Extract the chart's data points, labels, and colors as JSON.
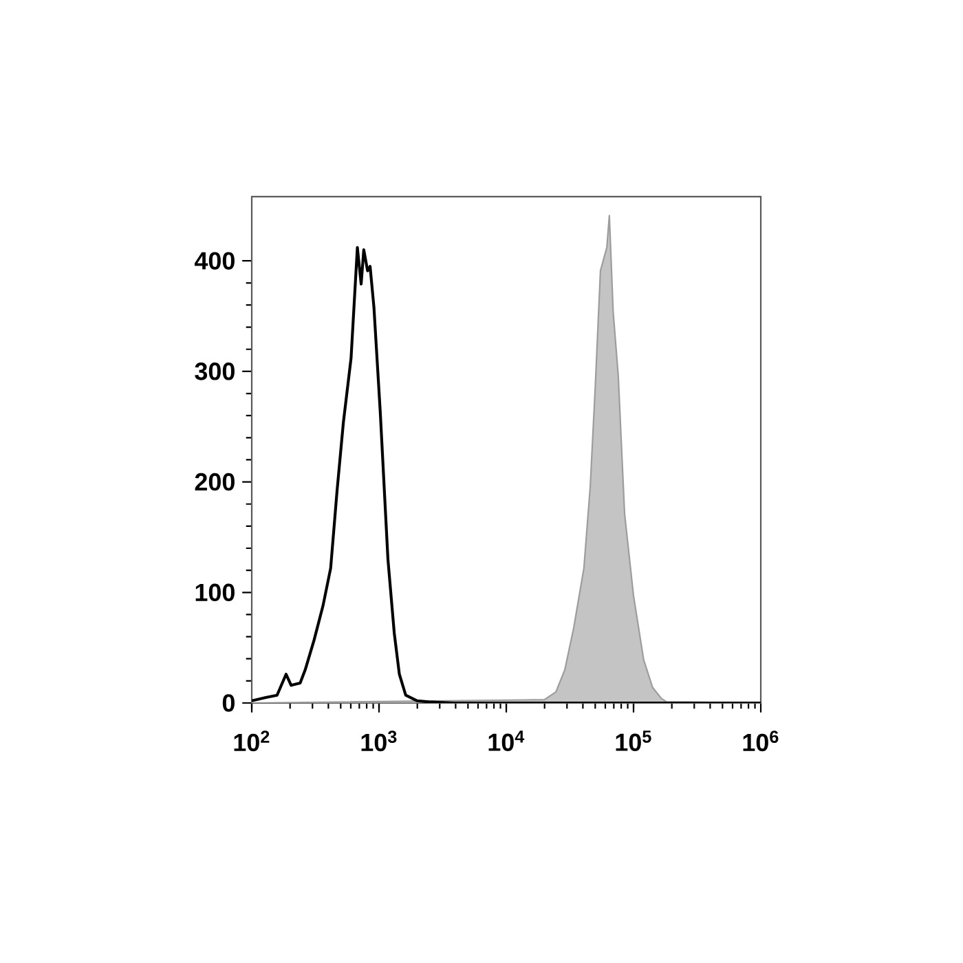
{
  "chart_data": {
    "type": "line",
    "log": "x",
    "xlim": [
      100,
      1000000
    ],
    "ylim": [
      0,
      458
    ],
    "xticks": [
      {
        "value": 100,
        "label": "10$^{2}$"
      },
      {
        "value": 1000,
        "label": "10$^{3}$"
      },
      {
        "value": 10000,
        "label": "10$^{4}$"
      },
      {
        "value": 100000,
        "label": "10$^{5}$"
      },
      {
        "value": 1000000,
        "label": "10$^{6}$"
      }
    ],
    "yticks": [
      0,
      100,
      200,
      300,
      400
    ],
    "series": [
      {
        "type": "area",
        "color": "#c4c4c4",
        "x": [
          100,
          19950,
          24550,
          28840,
          33880,
          40740,
          45710,
          50120,
          54950,
          61660,
          64570,
          69180,
          75860,
          85110,
          100000,
          120200,
          141300,
          166000,
          182000,
          1000000
        ],
        "values": [
          0,
          3,
          10,
          30,
          68,
          122,
          196,
          288,
          391,
          412,
          441,
          354,
          296,
          171,
          97,
          39,
          14,
          4,
          1,
          0
        ]
      },
      {
        "color": "#000000",
        "x": [
          100,
          129,
          158,
          186,
          204,
          240,
          263,
          309,
          363,
          417,
          468,
          525,
          603,
          676,
          724,
          759,
          813,
          851,
          912,
          1023,
          1175,
          1318,
          1445,
          1622,
          1995,
          2455,
          3890,
          1000000
        ],
        "values": [
          2,
          5,
          7,
          26,
          16,
          18,
          30,
          57,
          88,
          122,
          192,
          254,
          312,
          412,
          379,
          410,
          391,
          395,
          358,
          263,
          130,
          63,
          26,
          7,
          2,
          1,
          0,
          0
        ]
      }
    ]
  }
}
